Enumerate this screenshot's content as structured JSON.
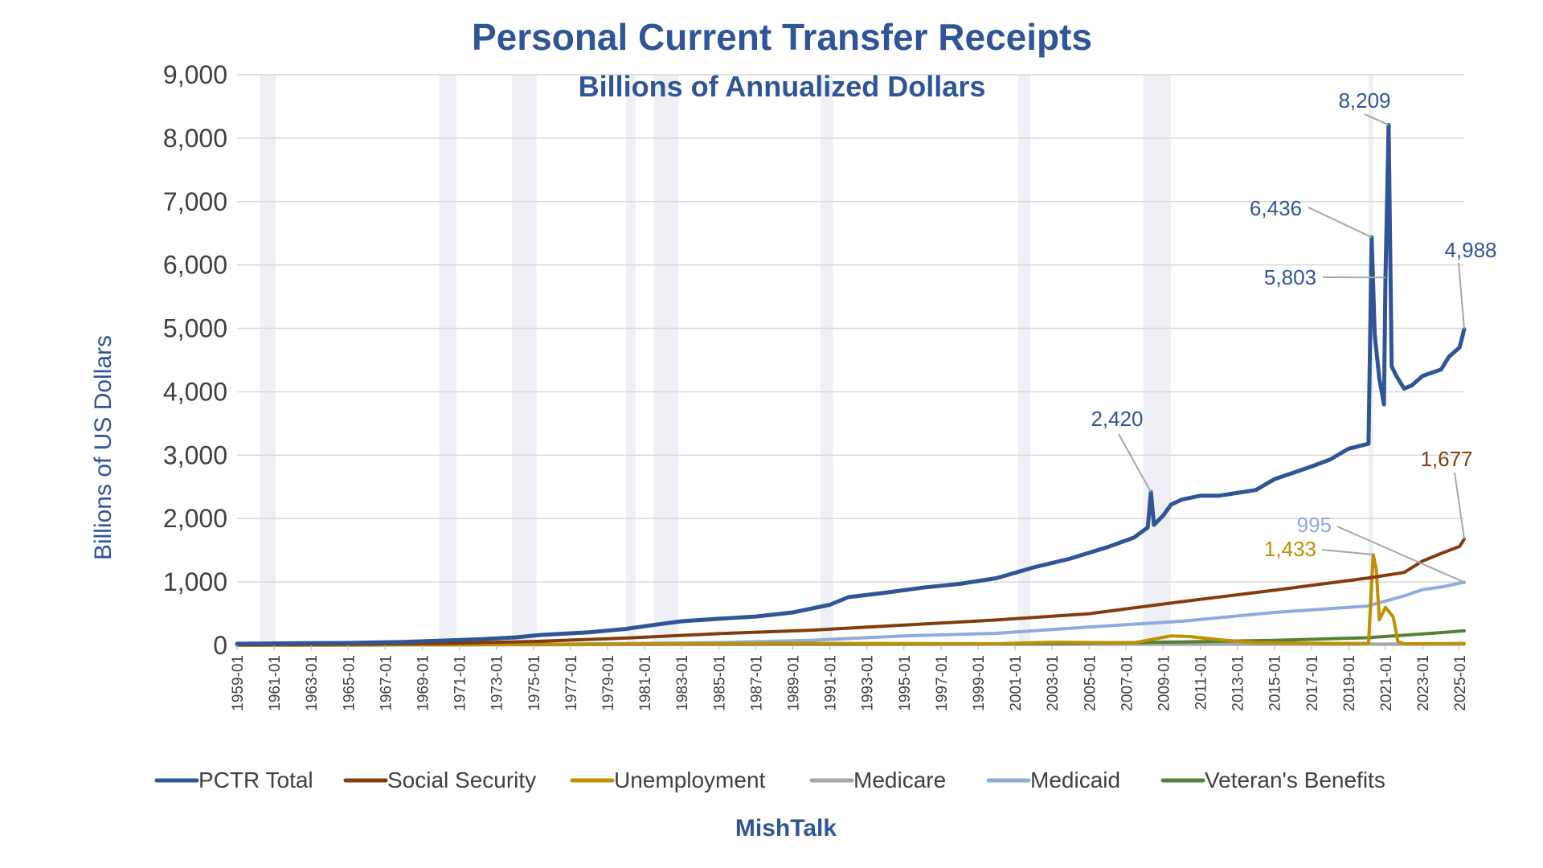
{
  "chart_data": {
    "type": "line",
    "title": "Personal Current Transfer Receipts",
    "subtitle": "Billions of Annualized Dollars",
    "ylabel": "Billions of US Dollars",
    "xlabel": "",
    "source": "MishTalk",
    "ylim": [
      0,
      9000
    ],
    "xlim": [
      "1959-01",
      "2025-04"
    ],
    "grid": true,
    "legend_position": "bottom",
    "y_ticks": [
      "0",
      "1,000",
      "2,000",
      "3,000",
      "4,000",
      "5,000",
      "6,000",
      "7,000",
      "8,000",
      "9,000"
    ],
    "x_ticks": [
      "1959-01",
      "1961-01",
      "1963-01",
      "1965-01",
      "1967-01",
      "1969-01",
      "1971-01",
      "1973-01",
      "1975-01",
      "1977-01",
      "1979-01",
      "1981-01",
      "1983-01",
      "1985-01",
      "1987-01",
      "1989-01",
      "1991-01",
      "1993-01",
      "1995-01",
      "1997-01",
      "1999-01",
      "2001-01",
      "2003-01",
      "2005-01",
      "2007-01",
      "2009-01",
      "2011-01",
      "2013-01",
      "2015-01",
      "2017-01",
      "2019-01",
      "2021-01",
      "2023-01",
      "2025-01"
    ],
    "recessions": [
      [
        "1960-04",
        "1961-02"
      ],
      [
        "1969-12",
        "1970-11"
      ],
      [
        "1973-11",
        "1975-03"
      ],
      [
        "1980-01",
        "1980-07"
      ],
      [
        "1981-07",
        "1982-11"
      ],
      [
        "1990-07",
        "1991-03"
      ],
      [
        "2001-03",
        "2001-11"
      ],
      [
        "2007-12",
        "2009-06"
      ],
      [
        "2020-02",
        "2020-04"
      ]
    ],
    "series": [
      {
        "name": "PCTR Total",
        "color": "#2F5597",
        "points": [
          [
            "1959-01",
            25
          ],
          [
            "1962-01",
            33
          ],
          [
            "1965-01",
            38
          ],
          [
            "1968-01",
            55
          ],
          [
            "1970-01",
            75
          ],
          [
            "1972-01",
            95
          ],
          [
            "1974-01",
            125
          ],
          [
            "1975-06",
            165
          ],
          [
            "1978-01",
            205
          ],
          [
            "1980-01",
            260
          ],
          [
            "1981-06",
            320
          ],
          [
            "1983-01",
            380
          ],
          [
            "1985-01",
            420
          ],
          [
            "1987-01",
            455
          ],
          [
            "1989-01",
            520
          ],
          [
            "1991-01",
            640
          ],
          [
            "1992-01",
            760
          ],
          [
            "1994-01",
            830
          ],
          [
            "1996-01",
            910
          ],
          [
            "1998-01",
            970
          ],
          [
            "2000-01",
            1060
          ],
          [
            "2002-01",
            1230
          ],
          [
            "2004-01",
            1370
          ],
          [
            "2006-01",
            1550
          ],
          [
            "2007-06",
            1700
          ],
          [
            "2008-03",
            1860
          ],
          [
            "2008-05",
            2420
          ],
          [
            "2008-07",
            1900
          ],
          [
            "2009-01",
            2050
          ],
          [
            "2009-06",
            2220
          ],
          [
            "2010-01",
            2300
          ],
          [
            "2011-01",
            2360
          ],
          [
            "2012-01",
            2360
          ],
          [
            "2014-01",
            2450
          ],
          [
            "2015-01",
            2620
          ],
          [
            "2016-01",
            2720
          ],
          [
            "2017-01",
            2820
          ],
          [
            "2018-01",
            2930
          ],
          [
            "2019-01",
            3100
          ],
          [
            "2020-02",
            3180
          ],
          [
            "2020-04",
            6436
          ],
          [
            "2020-06",
            4900
          ],
          [
            "2020-09",
            4200
          ],
          [
            "2020-12",
            3800
          ],
          [
            "2021-01",
            5803
          ],
          [
            "2021-03",
            8209
          ],
          [
            "2021-05",
            4400
          ],
          [
            "2021-08",
            4250
          ],
          [
            "2022-01",
            4050
          ],
          [
            "2022-06",
            4100
          ],
          [
            "2023-01",
            4250
          ],
          [
            "2024-01",
            4350
          ],
          [
            "2024-06",
            4550
          ],
          [
            "2025-01",
            4700
          ],
          [
            "2025-04",
            4988
          ]
        ]
      },
      {
        "name": "Social Security",
        "color": "#843C0C",
        "points": [
          [
            "1959-01",
            10
          ],
          [
            "1965-01",
            18
          ],
          [
            "1970-01",
            30
          ],
          [
            "1975-01",
            62
          ],
          [
            "1980-01",
            115
          ],
          [
            "1985-01",
            185
          ],
          [
            "1990-01",
            240
          ],
          [
            "1995-01",
            320
          ],
          [
            "2000-01",
            400
          ],
          [
            "2005-01",
            500
          ],
          [
            "2010-01",
            690
          ],
          [
            "2015-01",
            870
          ],
          [
            "2020-01",
            1060
          ],
          [
            "2022-01",
            1150
          ],
          [
            "2023-01",
            1330
          ],
          [
            "2024-01",
            1450
          ],
          [
            "2025-01",
            1560
          ],
          [
            "2025-04",
            1677
          ]
        ]
      },
      {
        "name": "Unemployment",
        "color": "#BF9000",
        "points": [
          [
            "1959-01",
            3
          ],
          [
            "1975-01",
            15
          ],
          [
            "1983-01",
            25
          ],
          [
            "1992-01",
            30
          ],
          [
            "2000-01",
            25
          ],
          [
            "2003-01",
            50
          ],
          [
            "2007-06",
            40
          ],
          [
            "2009-06",
            150
          ],
          [
            "2010-06",
            140
          ],
          [
            "2012-01",
            90
          ],
          [
            "2014-01",
            40
          ],
          [
            "2019-12",
            28
          ],
          [
            "2020-02",
            35
          ],
          [
            "2020-05",
            1433
          ],
          [
            "2020-07",
            1200
          ],
          [
            "2020-09",
            400
          ],
          [
            "2021-01",
            600
          ],
          [
            "2021-06",
            450
          ],
          [
            "2021-09",
            60
          ],
          [
            "2022-01",
            25
          ],
          [
            "2025-04",
            30
          ]
        ]
      },
      {
        "name": "Medicare",
        "color": "#A5A5A5",
        "points": [
          [
            "1959-01",
            0
          ],
          [
            "1967-01",
            5
          ],
          [
            "1975-01",
            10
          ],
          [
            "1985-01",
            15
          ],
          [
            "1995-01",
            15
          ],
          [
            "2005-01",
            20
          ],
          [
            "2015-01",
            20
          ],
          [
            "2025-04",
            20
          ]
        ]
      },
      {
        "name": "Medicaid",
        "color": "#8FAADC",
        "points": [
          [
            "1959-01",
            0
          ],
          [
            "1966-01",
            5
          ],
          [
            "1975-01",
            15
          ],
          [
            "1985-01",
            45
          ],
          [
            "1990-01",
            80
          ],
          [
            "1995-01",
            150
          ],
          [
            "2000-01",
            190
          ],
          [
            "2005-01",
            290
          ],
          [
            "2010-01",
            380
          ],
          [
            "2015-01",
            520
          ],
          [
            "2020-01",
            620
          ],
          [
            "2021-01",
            700
          ],
          [
            "2022-01",
            780
          ],
          [
            "2023-01",
            880
          ],
          [
            "2024-01",
            920
          ],
          [
            "2025-04",
            995
          ]
        ]
      },
      {
        "name": "Veteran's Benefits",
        "color": "#548235",
        "points": [
          [
            "1959-01",
            5
          ],
          [
            "1970-01",
            10
          ],
          [
            "1980-01",
            20
          ],
          [
            "1990-01",
            20
          ],
          [
            "2000-01",
            25
          ],
          [
            "2005-01",
            35
          ],
          [
            "2010-01",
            55
          ],
          [
            "2015-01",
            80
          ],
          [
            "2020-01",
            120
          ],
          [
            "2023-01",
            180
          ],
          [
            "2025-04",
            230
          ]
        ]
      }
    ],
    "annotations": [
      {
        "label": "8,209",
        "series": "PCTR Total",
        "x": "2021-03",
        "y": 8209
      },
      {
        "label": "6,436",
        "series": "PCTR Total",
        "x": "2020-04",
        "y": 6436
      },
      {
        "label": "5,803",
        "series": "PCTR Total",
        "x": "2021-01",
        "y": 5803
      },
      {
        "label": "4,988",
        "series": "PCTR Total",
        "x": "2025-04",
        "y": 4988
      },
      {
        "label": "2,420",
        "series": "PCTR Total",
        "x": "2008-05",
        "y": 2420
      },
      {
        "label": "1,677",
        "series": "Social Security",
        "x": "2025-04",
        "y": 1677
      },
      {
        "label": "995",
        "series": "Medicaid",
        "x": "2025-04",
        "y": 995
      },
      {
        "label": "1,433",
        "series": "Unemployment",
        "x": "2020-05",
        "y": 1433
      }
    ]
  }
}
